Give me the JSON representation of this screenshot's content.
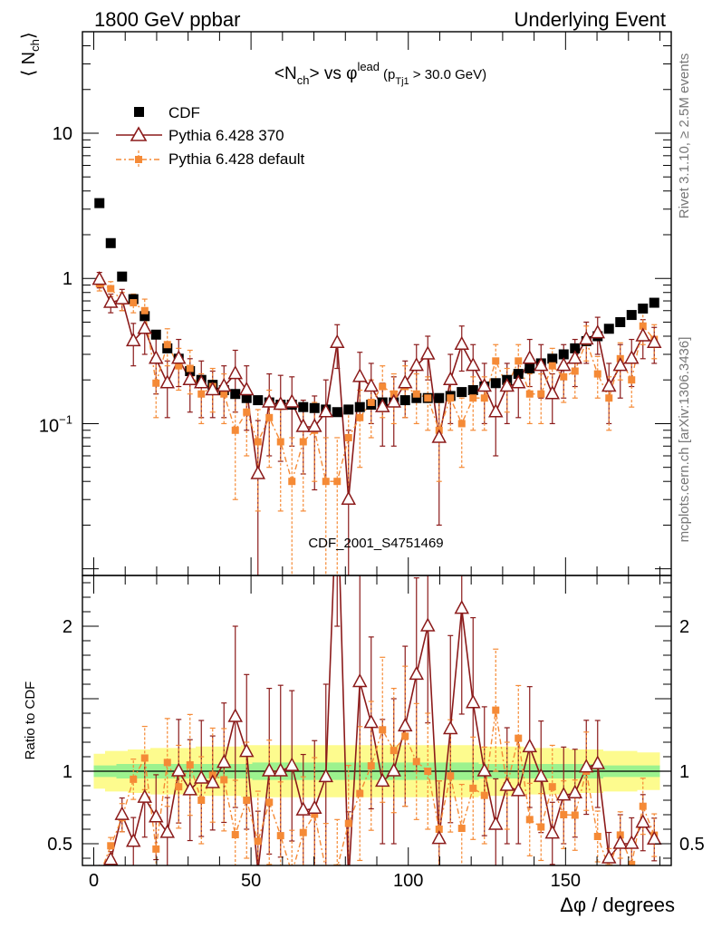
{
  "header": {
    "left": "1800 GeV ppbar",
    "right": "Underlying Event"
  },
  "side": {
    "rivet": "Rivet 3.1.10, ≥ 2.5M events",
    "mcplots": "mcplots.cern.ch [arXiv:1306.3436]"
  },
  "watermark": "CDF_2001_S4751469",
  "plot_title": {
    "prefix": "<N",
    "sub1": "ch",
    "middle": "> vs φ",
    "sup": "lead",
    "paren_open": "(p",
    "sub2": "Tj1",
    "suffix": " > 30.0 GeV)"
  },
  "y_top_label": {
    "main": "⟨ N",
    "sub": "ch",
    "close": "⟩"
  },
  "y_bottom_label": "Ratio to CDF",
  "x_label": "Δφ / degrees",
  "legend": [
    {
      "label": "CDF",
      "color": "#000000",
      "marker": "square"
    },
    {
      "label": "Pythia 6.428 370",
      "color": "#8b1a1a",
      "marker": "open-triangle"
    },
    {
      "label": "Pythia 6.428 default",
      "color": "#f58a36",
      "marker": "small-square"
    }
  ],
  "top_ticks": [
    {
      "label": "10",
      "value": 10
    },
    {
      "label": "1",
      "value": 1
    },
    {
      "label": "10",
      "sup": "−1",
      "value": 0.1
    }
  ],
  "bottom_ticks": [
    {
      "label": "2",
      "value": 2
    },
    {
      "label": "1",
      "value": 1
    },
    {
      "label": "0.5",
      "value": 0.5
    }
  ],
  "x_ticks": [
    {
      "label": "0",
      "value": 0
    },
    {
      "label": "50",
      "value": 50
    },
    {
      "label": "100",
      "value": 100
    },
    {
      "label": "150",
      "value": 150
    }
  ],
  "chart_data": {
    "type": "scatter",
    "title": "<Nch> vs φ lead (pTj1 > 30.0 GeV)",
    "xlabel": "Δφ / degrees",
    "ylabel": "⟨ Nch ⟩",
    "xlim": [
      -3.6,
      183.6
    ],
    "ylim_log": [
      0.009,
      50
    ],
    "ratio_ylim": [
      0.35,
      2.35
    ],
    "x": [
      1.8,
      5.4,
      9,
      12.6,
      16.2,
      19.8,
      23.4,
      27,
      30.6,
      34.2,
      37.8,
      41.4,
      45,
      48.6,
      52.2,
      55.8,
      59.4,
      63,
      66.6,
      70.2,
      73.8,
      77.4,
      81,
      84.6,
      88.2,
      91.8,
      95.4,
      99,
      102.6,
      106.2,
      109.8,
      113.4,
      117,
      120.6,
      124.2,
      127.8,
      131.4,
      135,
      138.6,
      142.2,
      145.8,
      149.4,
      153,
      156.6,
      160.2,
      163.8,
      167.4,
      171,
      174.6,
      178.2
    ],
    "series": [
      {
        "name": "CDF",
        "values": [
          3.3,
          1.75,
          1.03,
          0.72,
          0.55,
          0.41,
          0.33,
          0.28,
          0.23,
          0.2,
          0.185,
          0.17,
          0.16,
          0.15,
          0.145,
          0.14,
          0.135,
          0.135,
          0.13,
          0.128,
          0.125,
          0.12,
          0.125,
          0.13,
          0.135,
          0.14,
          0.14,
          0.145,
          0.15,
          0.15,
          0.15,
          0.155,
          0.165,
          0.17,
          0.18,
          0.19,
          0.2,
          0.22,
          0.24,
          0.26,
          0.28,
          0.3,
          0.33,
          0.37,
          0.4,
          0.45,
          0.5,
          0.56,
          0.62,
          0.68
        ],
        "band_inner": [
          1.04,
          1.04,
          1.05,
          1.05,
          1.05,
          1.05,
          1.05,
          1.05,
          1.05,
          1.05,
          1.05,
          1.05,
          1.05,
          1.05,
          1.06,
          1.06,
          1.06,
          1.06,
          1.06,
          1.06,
          1.06,
          1.06,
          1.06,
          1.06,
          1.06,
          1.06,
          1.06,
          1.06,
          1.06,
          1.06,
          1.06,
          1.06,
          1.06,
          1.06,
          1.05,
          1.05,
          1.05,
          1.05,
          1.05,
          1.05,
          1.05,
          1.05,
          1.05,
          1.05,
          1.05,
          1.04,
          1.04,
          1.04,
          1.04,
          1.04
        ],
        "band_outer": [
          1.12,
          1.14,
          1.14,
          1.15,
          1.15,
          1.16,
          1.16,
          1.16,
          1.16,
          1.17,
          1.17,
          1.17,
          1.17,
          1.18,
          1.18,
          1.18,
          1.18,
          1.18,
          1.18,
          1.18,
          1.18,
          1.18,
          1.18,
          1.18,
          1.18,
          1.18,
          1.18,
          1.18,
          1.18,
          1.18,
          1.18,
          1.18,
          1.18,
          1.18,
          1.17,
          1.17,
          1.17,
          1.17,
          1.16,
          1.16,
          1.16,
          1.16,
          1.15,
          1.15,
          1.15,
          1.14,
          1.14,
          1.14,
          1.13,
          1.13
        ]
      },
      {
        "name": "Pythia 6.428 370",
        "values": [
          0.98,
          0.68,
          0.72,
          0.37,
          0.45,
          0.28,
          0.19,
          0.28,
          0.2,
          0.19,
          0.17,
          0.18,
          0.22,
          0.17,
          0.045,
          0.14,
          0.135,
          0.14,
          0.095,
          0.095,
          0.12,
          0.36,
          0.03,
          0.21,
          0.18,
          0.13,
          0.14,
          0.19,
          0.25,
          0.3,
          0.08,
          0.2,
          0.35,
          0.25,
          0.18,
          0.12,
          0.18,
          0.19,
          0.28,
          0.25,
          0.16,
          0.25,
          0.28,
          0.38,
          0.42,
          0.18,
          0.25,
          0.28,
          0.4,
          0.36
        ],
        "errors": [
          0.12,
          0.1,
          0.12,
          0.12,
          0.15,
          0.12,
          0.08,
          0.1,
          0.08,
          0.08,
          0.06,
          0.07,
          0.1,
          0.08,
          0.06,
          0.08,
          0.08,
          0.07,
          0.05,
          0.06,
          0.08,
          0.12,
          0.06,
          0.1,
          0.08,
          0.06,
          0.07,
          0.08,
          0.1,
          0.1,
          0.06,
          0.1,
          0.12,
          0.1,
          0.08,
          0.06,
          0.08,
          0.08,
          0.1,
          0.1,
          0.06,
          0.1,
          0.1,
          0.12,
          0.12,
          0.08,
          0.1,
          0.1,
          0.12,
          0.1
        ]
      },
      {
        "name": "Pythia 6.428 default",
        "values": [
          0.92,
          0.85,
          0.7,
          0.68,
          0.6,
          0.19,
          0.35,
          0.25,
          0.24,
          0.16,
          0.18,
          0.16,
          0.09,
          0.12,
          0.075,
          0.11,
          0.075,
          0.04,
          0.075,
          0.09,
          0.04,
          0.04,
          0.08,
          0.11,
          0.14,
          0.18,
          0.16,
          0.18,
          0.16,
          0.15,
          0.09,
          0.15,
          0.1,
          0.15,
          0.15,
          0.27,
          0.18,
          0.27,
          0.16,
          0.16,
          0.25,
          0.21,
          0.23,
          0.37,
          0.22,
          0.15,
          0.28,
          0.2,
          0.47,
          0.38
        ],
        "errors": [
          0.1,
          0.1,
          0.1,
          0.1,
          0.12,
          0.08,
          0.1,
          0.08,
          0.08,
          0.06,
          0.06,
          0.06,
          0.06,
          0.06,
          0.05,
          0.06,
          0.05,
          0.04,
          0.05,
          0.05,
          0.04,
          0.04,
          0.05,
          0.06,
          0.06,
          0.07,
          0.06,
          0.07,
          0.06,
          0.06,
          0.05,
          0.06,
          0.05,
          0.06,
          0.06,
          0.08,
          0.06,
          0.08,
          0.06,
          0.06,
          0.08,
          0.07,
          0.08,
          0.1,
          0.07,
          0.06,
          0.08,
          0.07,
          0.12,
          0.1
        ]
      }
    ]
  }
}
